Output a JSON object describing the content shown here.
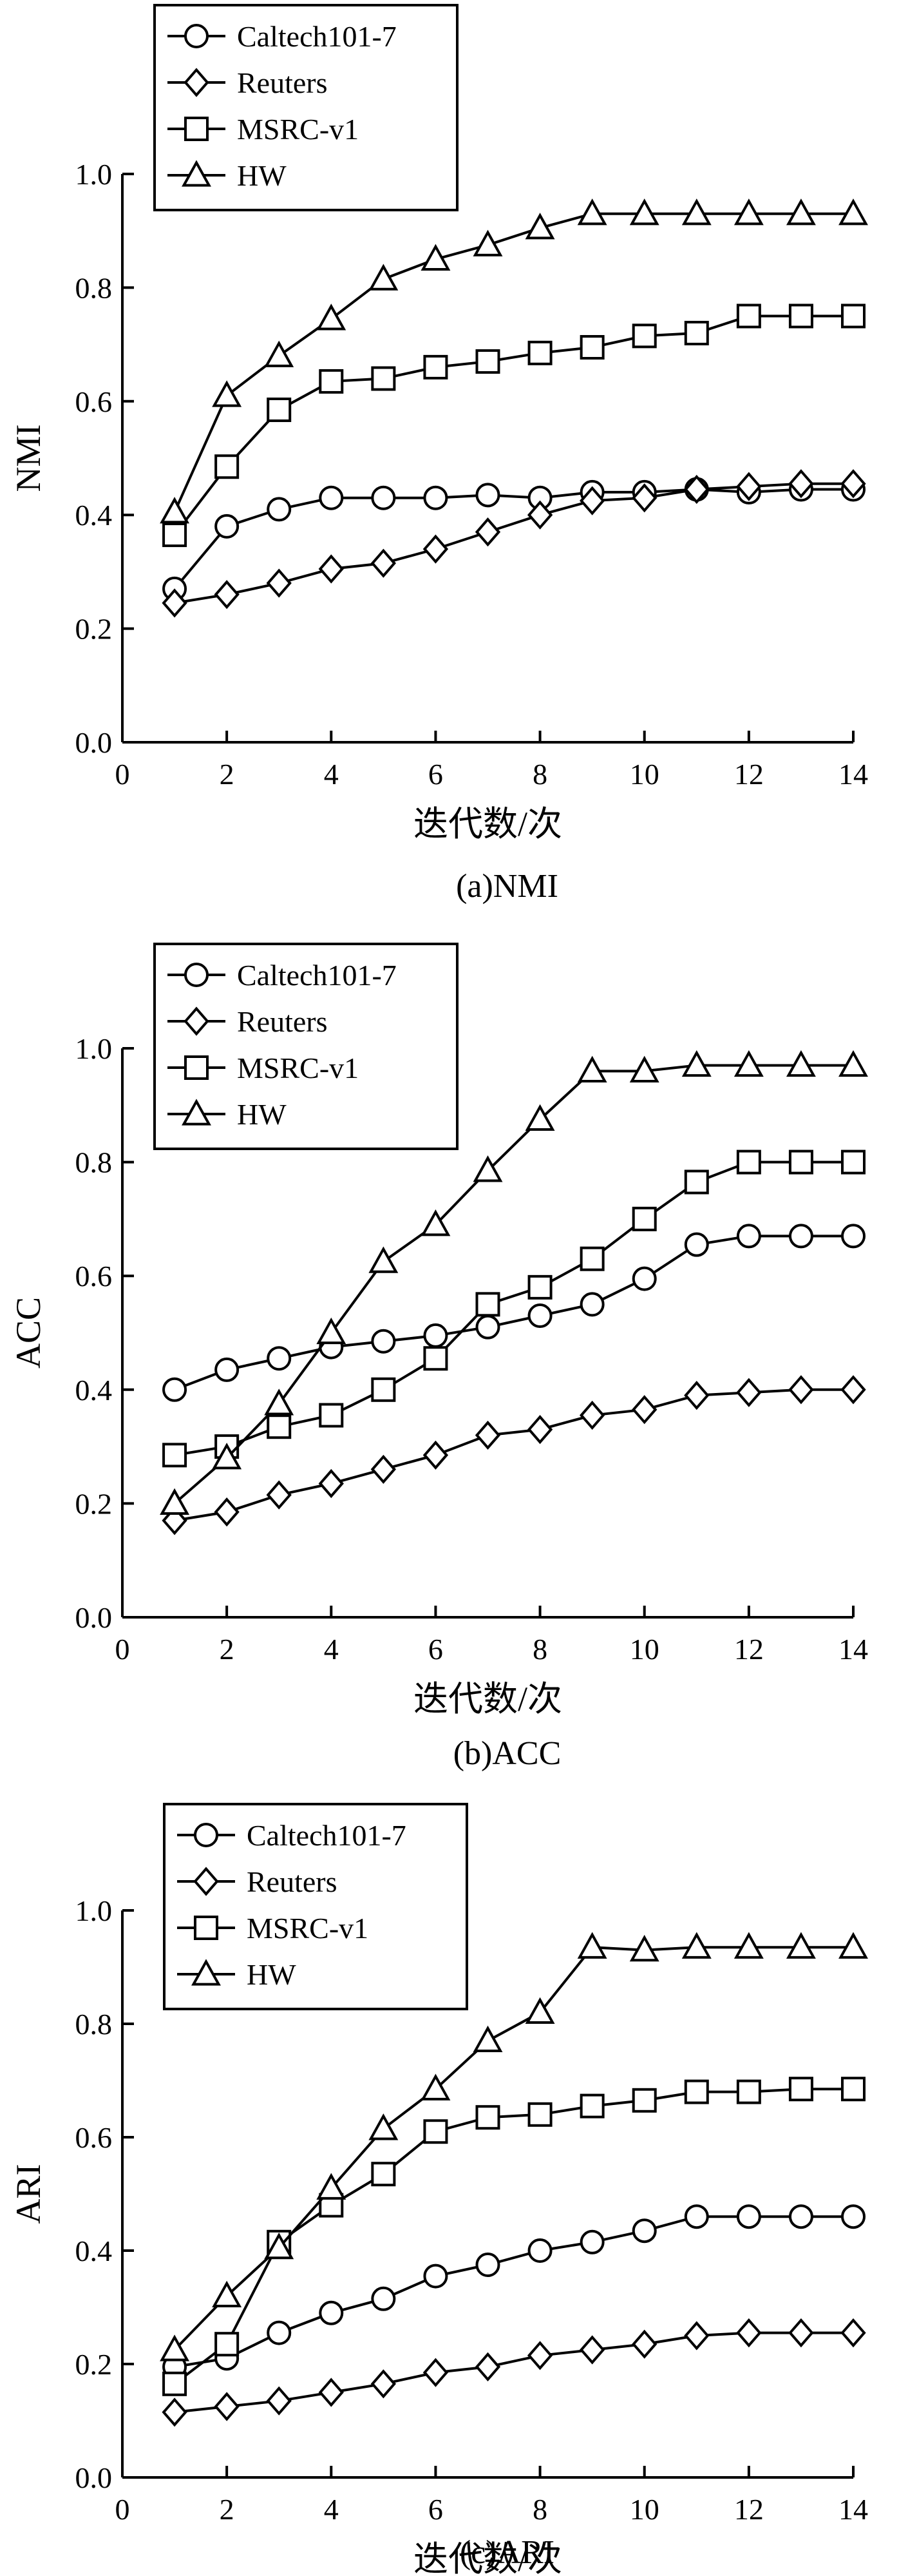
{
  "charts": [
    {
      "caption": "(a)NMI",
      "chart_data": {
        "type": "line",
        "xlabel": "迭代数/次",
        "ylabel": "NMI",
        "xlim": [
          0,
          14
        ],
        "ylim": [
          0.0,
          1.0
        ],
        "x_ticks": [
          "0",
          "2",
          "4",
          "6",
          "8",
          "10",
          "12",
          "14"
        ],
        "y_ticks": [
          "0.0",
          "0.2",
          "0.4",
          "0.6",
          "0.8",
          "1.0"
        ],
        "legend_position": "top-left",
        "x": [
          1,
          2,
          3,
          4,
          5,
          6,
          7,
          8,
          9,
          10,
          11,
          12,
          13,
          14
        ],
        "series": [
          {
            "name": "Caltech101-7",
            "marker": "circle",
            "values": [
              0.27,
              0.38,
              0.41,
              0.43,
              0.43,
              0.43,
              0.435,
              0.43,
              0.44,
              0.44,
              0.445,
              0.44,
              0.445,
              0.445
            ]
          },
          {
            "name": "Reuters",
            "marker": "diamond",
            "values": [
              0.245,
              0.26,
              0.28,
              0.305,
              0.315,
              0.34,
              0.37,
              0.4,
              0.425,
              0.43,
              0.445,
              0.45,
              0.455,
              0.455
            ]
          },
          {
            "name": "MSRC-v1",
            "marker": "square",
            "values": [
              0.365,
              0.485,
              0.585,
              0.635,
              0.64,
              0.66,
              0.67,
              0.685,
              0.695,
              0.715,
              0.72,
              0.75,
              0.75,
              0.75
            ]
          },
          {
            "name": "HW",
            "marker": "triangle",
            "values": [
              0.405,
              0.61,
              0.68,
              0.745,
              0.815,
              0.85,
              0.875,
              0.905,
              0.93,
              0.93,
              0.93,
              0.93,
              0.93,
              0.93
            ]
          }
        ]
      }
    },
    {
      "caption": "(b)ACC",
      "chart_data": {
        "type": "line",
        "xlabel": "迭代数/次",
        "ylabel": "ACC",
        "xlim": [
          0,
          14
        ],
        "ylim": [
          0.0,
          1.0
        ],
        "x_ticks": [
          "0",
          "2",
          "4",
          "6",
          "8",
          "10",
          "12",
          "14"
        ],
        "y_ticks": [
          "0.0",
          "0.2",
          "0.4",
          "0.6",
          "0.8",
          "1.0"
        ],
        "legend_position": "top-left",
        "x": [
          1,
          2,
          3,
          4,
          5,
          6,
          7,
          8,
          9,
          10,
          11,
          12,
          13,
          14
        ],
        "series": [
          {
            "name": "Caltech101-7",
            "marker": "circle",
            "values": [
              0.4,
              0.435,
              0.455,
              0.475,
              0.485,
              0.495,
              0.51,
              0.53,
              0.55,
              0.595,
              0.655,
              0.67,
              0.67,
              0.67
            ]
          },
          {
            "name": "Reuters",
            "marker": "diamond",
            "values": [
              0.17,
              0.185,
              0.215,
              0.235,
              0.26,
              0.285,
              0.32,
              0.33,
              0.355,
              0.365,
              0.39,
              0.395,
              0.4,
              0.4
            ]
          },
          {
            "name": "MSRC-v1",
            "marker": "square",
            "values": [
              0.285,
              0.3,
              0.335,
              0.355,
              0.4,
              0.455,
              0.55,
              0.58,
              0.63,
              0.7,
              0.765,
              0.8,
              0.8,
              0.8
            ]
          },
          {
            "name": "HW",
            "marker": "triangle",
            "values": [
              0.2,
              0.28,
              0.375,
              0.5,
              0.625,
              0.69,
              0.785,
              0.875,
              0.96,
              0.96,
              0.97,
              0.97,
              0.97,
              0.97
            ]
          }
        ]
      }
    },
    {
      "caption": "(c)ARI",
      "chart_data": {
        "type": "line",
        "xlabel": "迭代数/次",
        "ylabel": "ARI",
        "xlim": [
          0,
          14
        ],
        "ylim": [
          0.0,
          1.0
        ],
        "x_ticks": [
          "0",
          "2",
          "4",
          "6",
          "8",
          "10",
          "12",
          "14"
        ],
        "y_ticks": [
          "0.0",
          "0.2",
          "0.4",
          "0.6",
          "0.8",
          "1.0"
        ],
        "legend_position": "top-left",
        "x": [
          1,
          2,
          3,
          4,
          5,
          6,
          7,
          8,
          9,
          10,
          11,
          12,
          13,
          14
        ],
        "series": [
          {
            "name": "Caltech101-7",
            "marker": "circle",
            "values": [
              0.195,
              0.21,
              0.255,
              0.29,
              0.315,
              0.355,
              0.375,
              0.4,
              0.415,
              0.435,
              0.46,
              0.46,
              0.46,
              0.46
            ]
          },
          {
            "name": "Reuters",
            "marker": "diamond",
            "values": [
              0.115,
              0.125,
              0.135,
              0.15,
              0.165,
              0.185,
              0.195,
              0.215,
              0.225,
              0.235,
              0.25,
              0.255,
              0.255,
              0.255
            ]
          },
          {
            "name": "MSRC-v1",
            "marker": "square",
            "values": [
              0.165,
              0.235,
              0.415,
              0.48,
              0.535,
              0.61,
              0.635,
              0.64,
              0.655,
              0.665,
              0.68,
              0.68,
              0.685,
              0.685
            ]
          },
          {
            "name": "HW",
            "marker": "triangle",
            "values": [
              0.225,
              0.32,
              0.405,
              0.51,
              0.615,
              0.685,
              0.77,
              0.82,
              0.935,
              0.93,
              0.935,
              0.935,
              0.935,
              0.935
            ]
          }
        ]
      }
    }
  ]
}
